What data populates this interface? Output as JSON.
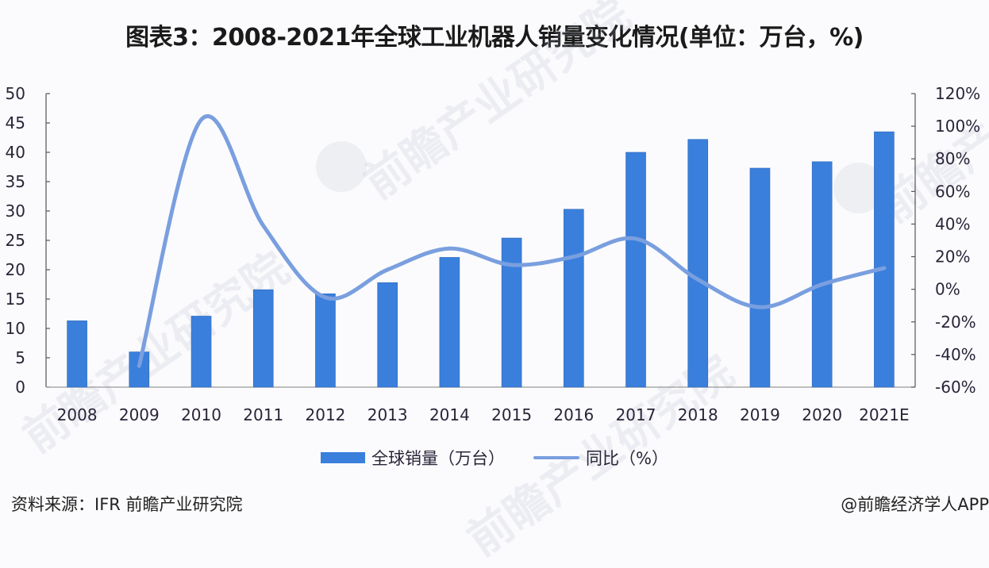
{
  "title": "图表3：2008-2021年全球工业机器人销量变化情况(单位：万台，%)",
  "chart_data": {
    "type": "bar+line",
    "title": "图表3：2008-2021年全球工业机器人销量变化情况(单位：万台，%)",
    "categories": [
      "2008",
      "2009",
      "2010",
      "2011",
      "2012",
      "2013",
      "2014",
      "2015",
      "2016",
      "2017",
      "2018",
      "2019",
      "2020",
      "2021E"
    ],
    "series": [
      {
        "name": "全球销量（万台）",
        "type": "bar",
        "axis": "left",
        "color": "#3a7fdc",
        "values": [
          11.3,
          6.0,
          12.1,
          16.6,
          15.9,
          17.8,
          22.1,
          25.4,
          30.3,
          40.0,
          42.2,
          37.3,
          38.4,
          43.5
        ]
      },
      {
        "name": "同比（%）",
        "type": "line",
        "axis": "right",
        "color": "#7a9fdf",
        "smooth": true,
        "values": [
          null,
          -47,
          104,
          39,
          -5,
          12,
          25,
          15,
          20,
          31,
          6,
          -11,
          3,
          13
        ]
      }
    ],
    "y_left": {
      "min": 0,
      "max": 50,
      "step": 5,
      "ticks": [
        "0",
        "5",
        "10",
        "15",
        "20",
        "25",
        "30",
        "35",
        "40",
        "45",
        "50"
      ]
    },
    "y_right": {
      "min": -60,
      "max": 120,
      "step": 20,
      "ticks": [
        "-60%",
        "-40%",
        "-20%",
        "0%",
        "20%",
        "40%",
        "60%",
        "80%",
        "100%",
        "120%"
      ]
    },
    "xlabel": "",
    "ylabel": "",
    "grid": false,
    "legend_position": "bottom"
  },
  "legend": {
    "bar_label": "全球销量（万台）",
    "line_label": "同比（%）"
  },
  "footer": {
    "source": "资料来源：IFR 前瞻产业研究院",
    "credit": "@前瞻经济学人APP"
  },
  "watermark": {
    "text": "前瞻产业研究院"
  }
}
